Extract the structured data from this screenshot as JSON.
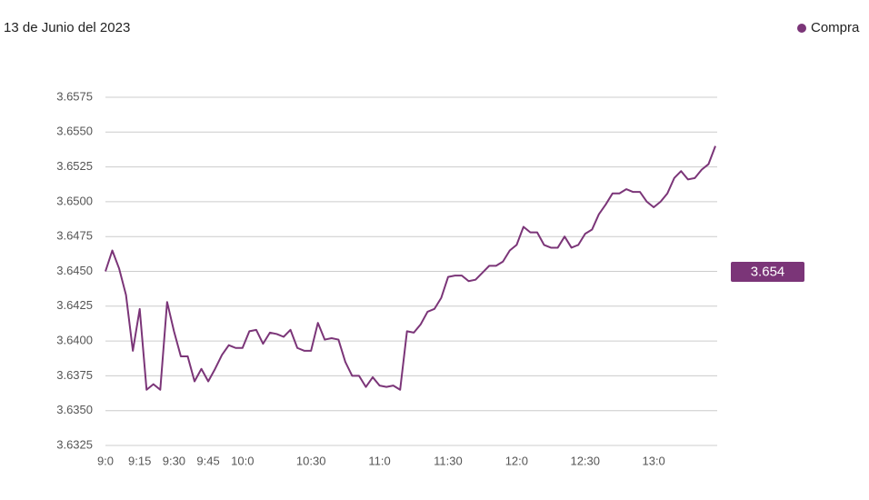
{
  "chart_data": {
    "type": "line",
    "title": "13 de Junio del 2023",
    "categories": [
      "9:0",
      null,
      null,
      null,
      null,
      "9:15",
      null,
      null,
      null,
      null,
      "9:30",
      null,
      null,
      null,
      null,
      "9:45",
      null,
      null,
      null,
      null,
      "10:0",
      null,
      null,
      null,
      null,
      null,
      null,
      null,
      null,
      null,
      "10:30",
      null,
      null,
      null,
      null,
      null,
      null,
      null,
      null,
      null,
      "11:0",
      null,
      null,
      null,
      null,
      null,
      null,
      null,
      null,
      null,
      "11:30",
      null,
      null,
      null,
      null,
      null,
      null,
      null,
      null,
      null,
      "12:0",
      null,
      null,
      null,
      null,
      null,
      null,
      null,
      null,
      null,
      "12:30",
      null,
      null,
      null,
      null,
      null,
      null,
      null,
      null,
      null,
      "13:0",
      null,
      null,
      null,
      null,
      null,
      null,
      null,
      null,
      null
    ],
    "series": [
      {
        "name": "Compra",
        "color": "#7b3578",
        "values": [
          3.645,
          3.6465,
          3.6452,
          3.6433,
          3.6393,
          3.6423,
          3.6365,
          3.6369,
          3.6365,
          3.6428,
          3.6407,
          3.6389,
          3.6389,
          3.6371,
          3.638,
          3.6371,
          3.638,
          3.639,
          3.6397,
          3.6395,
          3.6395,
          3.6407,
          3.6408,
          3.6398,
          3.6406,
          3.6405,
          3.6403,
          3.6408,
          3.6395,
          3.6393,
          3.6393,
          3.6413,
          3.6401,
          3.6402,
          3.6401,
          3.6385,
          3.6375,
          3.6375,
          3.6367,
          3.6374,
          3.6368,
          3.6367,
          3.6368,
          3.6365,
          3.6407,
          3.6406,
          3.6412,
          3.6421,
          3.6423,
          3.6431,
          3.6446,
          3.6447,
          3.6447,
          3.6443,
          3.6444,
          3.6449,
          3.6454,
          3.6454,
          3.6457,
          3.6465,
          3.6469,
          3.6482,
          3.6478,
          3.6478,
          3.6469,
          3.6467,
          3.6467,
          3.6475,
          3.6467,
          3.6469,
          3.6477,
          3.648,
          3.6491,
          3.6498,
          3.6506,
          3.6506,
          3.6509,
          3.6507,
          3.6507,
          3.65,
          3.6496,
          3.65,
          3.6506,
          3.6517,
          3.6522,
          3.6516,
          3.6517,
          3.6523,
          3.6527,
          3.654
        ]
      }
    ],
    "current_value": 3.654,
    "ylim": [
      3.6325,
      3.6575
    ],
    "yticks": [
      {
        "value": 3.6325,
        "label": "3.6325"
      },
      {
        "value": 3.635,
        "label": "3.6350"
      },
      {
        "value": 3.6375,
        "label": "3.6375"
      },
      {
        "value": 3.64,
        "label": "3.6400"
      },
      {
        "value": 3.6425,
        "label": "3.6425"
      },
      {
        "value": 3.645,
        "label": "3.6450"
      },
      {
        "value": 3.6475,
        "label": "3.6475"
      },
      {
        "value": 3.65,
        "label": "3.6500"
      },
      {
        "value": 3.6525,
        "label": "3.6525"
      },
      {
        "value": 3.655,
        "label": "3.6550"
      },
      {
        "value": 3.6575,
        "label": "3.6575"
      }
    ],
    "grid": true
  }
}
